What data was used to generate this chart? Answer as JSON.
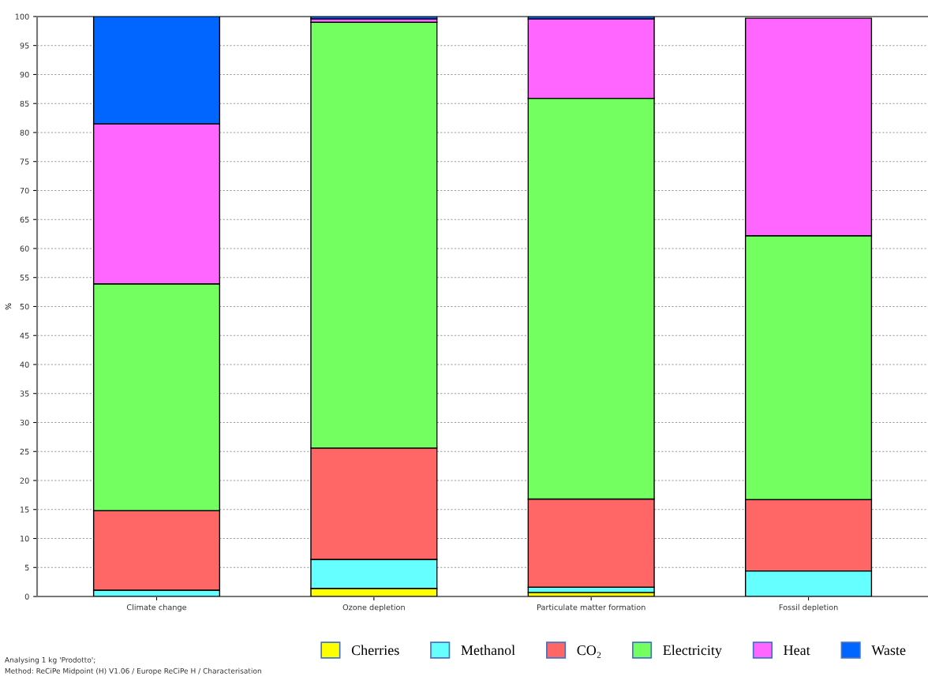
{
  "chart_data": {
    "type": "bar",
    "stacked": true,
    "ylabel": "%",
    "categories": [
      "Climate change",
      "Ozone depletion",
      "Particulate matter formation",
      "Fossil depletion"
    ],
    "series": [
      {
        "name": "Cherries",
        "color": "#ffff00",
        "values": [
          0,
          1.4,
          0.7,
          null
        ]
      },
      {
        "name": "Methanol",
        "color": "#66ffff",
        "values": [
          1.1,
          5.0,
          0.9,
          4.4
        ]
      },
      {
        "name": "CO₂",
        "color": "#ff6666",
        "values": [
          13.7,
          19.2,
          15.2,
          12.3
        ]
      },
      {
        "name": "Electricity",
        "color": "#73ff5f",
        "values": [
          39.1,
          73.4,
          69.1,
          45.5
        ]
      },
      {
        "name": "Heat",
        "color": "#ff66ff",
        "values": [
          27.6,
          0.6,
          13.7,
          37.5
        ]
      },
      {
        "name": "Waste",
        "color": "#0066ff",
        "values": [
          18.5,
          0.4,
          0.4,
          0
        ]
      }
    ],
    "ylim": [
      0,
      100
    ],
    "yticks": [
      0,
      5,
      10,
      15,
      20,
      25,
      30,
      35,
      40,
      45,
      50,
      55,
      60,
      65,
      70,
      75,
      80,
      85,
      90,
      95,
      100
    ],
    "grid": "y",
    "legend": "bottom",
    "annotations": [
      "Analysing 1 kg 'Prodotto';",
      "Method: ReCiPe Midpoint (H) V1.06 / Europe ReCiPe H / Characterisation"
    ]
  }
}
